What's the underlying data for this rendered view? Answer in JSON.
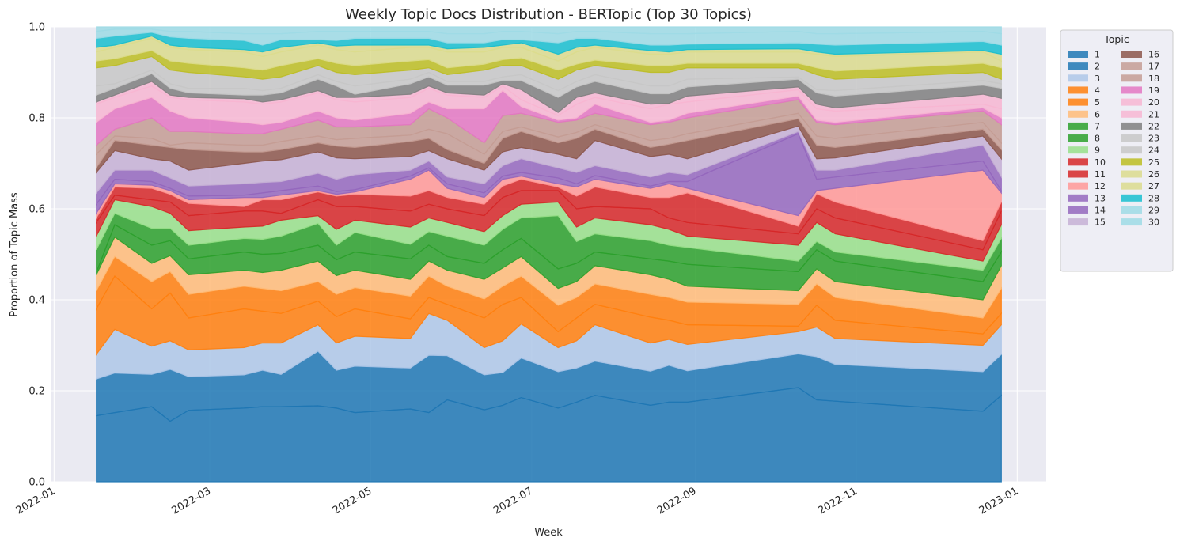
{
  "chart_data": {
    "type": "stacked_area",
    "title": "Weekly Topic Docs Distribution - BERTopic (Top 30 Topics)",
    "x_label": "Week",
    "y_label": "Proportion of Topic Mass",
    "legend_title": "Topic",
    "legend_loc": "outside upper right",
    "grid": true,
    "x": [
      "2022-01-17",
      "2022-01-24",
      "2022-02-07",
      "2022-02-14",
      "2022-02-21",
      "2022-03-14",
      "2022-03-21",
      "2022-03-28",
      "2022-04-11",
      "2022-04-18",
      "2022-04-25",
      "2022-05-16",
      "2022-05-23",
      "2022-05-30",
      "2022-06-13",
      "2022-06-20",
      "2022-06-27",
      "2022-07-11",
      "2022-07-18",
      "2022-07-25",
      "2022-08-15",
      "2022-08-22",
      "2022-08-29",
      "2022-10-10",
      "2022-10-17",
      "2022-10-24",
      "2022-12-19",
      "2022-12-26"
    ],
    "xlim": [
      "2021-12-31",
      "2023-01-12"
    ],
    "xticks": [
      {
        "value": "2022-01-01",
        "label": "2022-01"
      },
      {
        "value": "2022-03-01",
        "label": "2022-03"
      },
      {
        "value": "2022-05-01",
        "label": "2022-05"
      },
      {
        "value": "2022-07-01",
        "label": "2022-07"
      },
      {
        "value": "2022-09-01",
        "label": "2022-09"
      },
      {
        "value": "2022-11-01",
        "label": "2022-11"
      },
      {
        "value": "2023-01-01",
        "label": "2023-01"
      }
    ],
    "ylim": [
      0,
      1
    ],
    "yticks": [
      {
        "value": 0,
        "label": "0.0"
      },
      {
        "value": 0.2,
        "label": "0.2"
      },
      {
        "value": 0.4,
        "label": "0.4"
      },
      {
        "value": 0.6,
        "label": "0.6"
      },
      {
        "value": 0.8,
        "label": "0.8"
      },
      {
        "value": 1,
        "label": "1.0"
      }
    ],
    "series": [
      {
        "name": "1",
        "color": "#1f77b4",
        "values": [
          0.145,
          0.152,
          0.165,
          0.133,
          0.157,
          0.162,
          0.165,
          0.165,
          0.167,
          0.162,
          0.152,
          0.16,
          0.152,
          0.18,
          0.158,
          0.168,
          0.185,
          0.162,
          0.175,
          0.19,
          0.168,
          0.175,
          0.175,
          0.207,
          0.18,
          0.177,
          0.155,
          0.19
        ]
      },
      {
        "name": "2",
        "color": "#1f77b4",
        "values": [
          0.081,
          0.087,
          0.071,
          0.114,
          0.074,
          0.073,
          0.08,
          0.071,
          0.12,
          0.083,
          0.102,
          0.09,
          0.126,
          0.097,
          0.077,
          0.072,
          0.087,
          0.08,
          0.075,
          0.075,
          0.075,
          0.081,
          0.069,
          0.074,
          0.095,
          0.081,
          0.087,
          0.09
        ]
      },
      {
        "name": "3",
        "color": "#aec7e8",
        "values": [
          0.054,
          0.096,
          0.062,
          0.063,
          0.059,
          0.06,
          0.06,
          0.069,
          0.058,
          0.06,
          0.066,
          0.065,
          0.092,
          0.078,
          0.06,
          0.07,
          0.075,
          0.053,
          0.06,
          0.08,
          0.062,
          0.057,
          0.058,
          0.049,
          0.065,
          0.057,
          0.058,
          0.065
        ]
      },
      {
        "name": "4",
        "color": "#ff7f0e",
        "values": [
          0.1,
          0.117,
          0.082,
          0.105,
          0.07,
          0.085,
          0.07,
          0.065,
          0.052,
          0.058,
          0.06,
          0.043,
          0.035,
          0.035,
          0.065,
          0.08,
          0.058,
          0.035,
          0.05,
          0.045,
          0.057,
          0.042,
          0.043,
          0.012,
          0.048,
          0.04,
          0.025,
          0.025
        ]
      },
      {
        "name": "5",
        "color": "#ff7f0e",
        "values": [
          0.04,
          0.043,
          0.06,
          0.047,
          0.052,
          0.05,
          0.05,
          0.05,
          0.043,
          0.049,
          0.047,
          0.05,
          0.047,
          0.04,
          0.042,
          0.04,
          0.047,
          0.058,
          0.045,
          0.045,
          0.05,
          0.05,
          0.05,
          0.048,
          0.047,
          0.05,
          0.035,
          0.055
        ]
      },
      {
        "name": "6",
        "color": "#ffbb78",
        "values": [
          0.035,
          0.043,
          0.04,
          0.035,
          0.043,
          0.035,
          0.035,
          0.045,
          0.045,
          0.041,
          0.038,
          0.037,
          0.033,
          0.035,
          0.043,
          0.04,
          0.043,
          0.037,
          0.035,
          0.04,
          0.043,
          0.04,
          0.035,
          0.03,
          0.033,
          0.035,
          0.04,
          0.05
        ]
      },
      {
        "name": "7",
        "color": "#2ca02c",
        "values": [
          0.005,
          0.027,
          0.04,
          0.033,
          0.035,
          0.04,
          0.04,
          0.037,
          0.035,
          0.035,
          0.04,
          0.045,
          0.035,
          0.03,
          0.035,
          0.04,
          0.04,
          0.043,
          0.04,
          0.03,
          0.035,
          0.04,
          0.048,
          0.042,
          0.042,
          0.045,
          0.04,
          0.03
        ]
      },
      {
        "name": "8",
        "color": "#2ca02c",
        "values": [
          0.05,
          0.025,
          0.037,
          0.027,
          0.03,
          0.03,
          0.033,
          0.038,
          0.048,
          0.032,
          0.043,
          0.032,
          0.03,
          0.045,
          0.04,
          0.045,
          0.045,
          0.117,
          0.048,
          0.04,
          0.04,
          0.035,
          0.037,
          0.023,
          0.018,
          0.02,
          0.025,
          0.03
        ]
      },
      {
        "name": "9",
        "color": "#98df8a",
        "values": [
          0.03,
          0.03,
          0.048,
          0.033,
          0.032,
          0.025,
          0.029,
          0.035,
          0.017,
          0.035,
          0.027,
          0.038,
          0.03,
          0.03,
          0.03,
          0.03,
          0.03,
          0.03,
          0.032,
          0.035,
          0.035,
          0.035,
          0.025,
          0.035,
          0.042,
          0.04,
          0.02,
          0.03
        ]
      },
      {
        "name": "10",
        "color": "#d62728",
        "values": [
          0.03,
          0.01,
          0.015,
          0.025,
          0.033,
          0.035,
          0.033,
          0.015,
          0.035,
          0.05,
          0.03,
          0.035,
          0.03,
          0.03,
          0.035,
          0.04,
          0.03,
          0.025,
          0.04,
          0.025,
          0.035,
          0.025,
          0.03,
          0.025,
          0.03,
          0.035,
          0.025,
          0.03
        ]
      },
      {
        "name": "11",
        "color": "#d62728",
        "values": [
          0.01,
          0.018,
          0.025,
          0.017,
          0.027,
          0.01,
          0.025,
          0.03,
          0.017,
          0.023,
          0.027,
          0.033,
          0.03,
          0.025,
          0.025,
          0.025,
          0.025,
          0.008,
          0.028,
          0.043,
          0.025,
          0.045,
          0.065,
          0.017,
          0.033,
          0.035,
          0.02,
          0.02
        ]
      },
      {
        "name": "12",
        "color": "#ff9896",
        "values": [
          0.01,
          0.007,
          0.007,
          0.008,
          0.008,
          0.02,
          0.005,
          0.01,
          0.003,
          0.004,
          0.005,
          0.037,
          0.045,
          0.02,
          0.015,
          0.015,
          0.007,
          0.007,
          0.02,
          0.017,
          0.02,
          0.03,
          0.01,
          0.023,
          0.007,
          0.03,
          0.155,
          0.02
        ]
      },
      {
        "name": "13",
        "color": "#9467bd",
        "values": [
          0.02,
          0.01,
          0.008,
          0.005,
          0.008,
          0.005,
          0.01,
          0.01,
          0.01,
          0.006,
          0.005,
          0.007,
          0.005,
          0.01,
          0.01,
          0.007,
          0.008,
          0.013,
          0.007,
          0.008,
          0.005,
          0.005,
          0.015,
          0.18,
          0.025,
          0.025,
          0.02,
          0.005
        ]
      },
      {
        "name": "14",
        "color": "#9467bd",
        "values": [
          0.025,
          0.02,
          0.025,
          0.023,
          0.022,
          0.025,
          0.023,
          0.02,
          0.028,
          0.027,
          0.033,
          0.013,
          0.015,
          0.015,
          0.02,
          0.023,
          0.03,
          0.022,
          0.025,
          0.022,
          0.02,
          0.02,
          0.015,
          0.005,
          0.02,
          0.015,
          0.035,
          0.03
        ]
      },
      {
        "name": "15",
        "color": "#c5b0d5",
        "values": [
          0.045,
          0.043,
          0.025,
          0.037,
          0.035,
          0.045,
          0.047,
          0.048,
          0.047,
          0.047,
          0.035,
          0.03,
          0.023,
          0.04,
          0.03,
          0.03,
          0.025,
          0.03,
          0.03,
          0.055,
          0.045,
          0.04,
          0.035,
          0.012,
          0.025,
          0.027,
          0.02,
          0.04
        ]
      },
      {
        "name": "16",
        "color": "#8c564b",
        "values": [
          0.01,
          0.022,
          0.03,
          0.03,
          0.045,
          0.025,
          0.02,
          0.022,
          0.02,
          0.026,
          0.025,
          0.033,
          0.027,
          0.02,
          0.015,
          0.03,
          0.035,
          0.025,
          0.045,
          0.025,
          0.02,
          0.022,
          0.04,
          0.016,
          0.03,
          0.023,
          0.015,
          0.02
        ]
      },
      {
        "name": "17",
        "color": "#c49c94",
        "values": [
          0.03,
          0.01,
          0.015,
          0.005,
          0.015,
          0.015,
          0.015,
          0.018,
          0.015,
          0.014,
          0.02,
          0.014,
          0.02,
          0.035,
          0.02,
          0.015,
          0.01,
          0.013,
          0.013,
          0.01,
          0.015,
          0.013,
          0.015,
          0.012,
          0.02,
          0.02,
          0.015,
          0.015
        ]
      },
      {
        "name": "18",
        "color": "#c49c94",
        "values": [
          0.02,
          0.015,
          0.045,
          0.03,
          0.025,
          0.025,
          0.025,
          0.027,
          0.035,
          0.028,
          0.025,
          0.023,
          0.045,
          0.035,
          0.025,
          0.035,
          0.03,
          0.032,
          0.027,
          0.025,
          0.035,
          0.035,
          0.035,
          0.03,
          0.03,
          0.03,
          0.025,
          0.04
        ]
      },
      {
        "name": "19",
        "color": "#e377c2",
        "values": [
          0.05,
          0.045,
          0.045,
          0.045,
          0.03,
          0.025,
          0.02,
          0.015,
          0.02,
          0.02,
          0.015,
          0.025,
          0.015,
          0.02,
          0.075,
          0.055,
          0.015,
          0.005,
          0.005,
          0.02,
          0.005,
          0.005,
          0.01,
          0.008,
          0.005,
          0.005,
          0.007,
          0.015
        ]
      },
      {
        "name": "20",
        "color": "#f7b6d2",
        "values": [
          0.04,
          0.025,
          0.025,
          0.03,
          0.04,
          0.045,
          0.045,
          0.045,
          0.04,
          0.04,
          0.04,
          0.035,
          0.03,
          0.03,
          0.025,
          0.01,
          0.015,
          0.01,
          0.03,
          0.015,
          0.03,
          0.035,
          0.025,
          0.014,
          0.025,
          0.025,
          0.008,
          0.02
        ]
      },
      {
        "name": "21",
        "color": "#f7b6d2",
        "values": [
          0.005,
          0.005,
          0.01,
          0.005,
          0.005,
          0.007,
          0.005,
          0.005,
          0.005,
          0.005,
          0.01,
          0.007,
          0.005,
          0.005,
          0.005,
          0.005,
          0.022,
          0.007,
          0.015,
          0.01,
          0.01,
          0.002,
          0.013,
          0.006,
          0.01,
          0.007,
          0.022,
          0.023
        ]
      },
      {
        "name": "22",
        "color": "#7f7f7f",
        "values": [
          0.015,
          0.015,
          0.017,
          0.015,
          0.01,
          0.008,
          0.015,
          0.015,
          0.025,
          0.025,
          0.007,
          0.023,
          0.02,
          0.017,
          0.022,
          0.007,
          0.02,
          0.033,
          0.023,
          0.025,
          0.023,
          0.021,
          0.02,
          0.017,
          0.025,
          0.026,
          0.02,
          0.022
        ]
      },
      {
        "name": "23",
        "color": "#c7c7c7",
        "values": [
          0.02,
          0.01,
          0.008,
          0.01,
          0.01,
          0.015,
          0.01,
          0.01,
          0.01,
          0.01,
          0.018,
          0.01,
          0.01,
          0.008,
          0.008,
          0.008,
          0.013,
          0.015,
          0.012,
          0.015,
          0.017,
          0.017,
          0.017,
          0.005,
          0.007,
          0.012,
          0.01,
          0.01
        ]
      },
      {
        "name": "24",
        "color": "#c7c7c7",
        "values": [
          0.04,
          0.04,
          0.03,
          0.03,
          0.035,
          0.025,
          0.025,
          0.025,
          0.02,
          0.02,
          0.025,
          0.02,
          0.01,
          0.015,
          0.025,
          0.025,
          0.02,
          0.025,
          0.025,
          0.02,
          0.03,
          0.03,
          0.025,
          0.02,
          0.033,
          0.025,
          0.018,
          0.01
        ]
      },
      {
        "name": "25",
        "color": "#bcbd22",
        "values": [
          0.015,
          0.015,
          0.013,
          0.02,
          0.02,
          0.02,
          0.02,
          0.025,
          0.015,
          0.02,
          0.02,
          0.02,
          0.018,
          0.015,
          0.013,
          0.013,
          0.017,
          0.02,
          0.013,
          0.012,
          0.015,
          0.015,
          0.01,
          0.01,
          0.015,
          0.018,
          0.02,
          0.025
        ]
      },
      {
        "name": "26",
        "color": "#dbdb8d",
        "values": [
          0.02,
          0.025,
          0.027,
          0.03,
          0.03,
          0.035,
          0.03,
          0.03,
          0.03,
          0.03,
          0.03,
          0.03,
          0.027,
          0.035,
          0.027,
          0.027,
          0.023,
          0.02,
          0.027,
          0.028,
          0.025,
          0.025,
          0.025,
          0.025,
          0.03,
          0.032,
          0.025,
          0.015
        ]
      },
      {
        "name": "27",
        "color": "#dbdb8d",
        "values": [
          0.01,
          0.005,
          0.005,
          0.005,
          0.005,
          0.005,
          0.01,
          0.01,
          0.005,
          0.008,
          0.015,
          0.005,
          0.005,
          0.007,
          0.01,
          0.005,
          0.01,
          0.015,
          0.01,
          0.005,
          0.008,
          0.005,
          0.005,
          0.007,
          0.005,
          0.005,
          0.003,
          0.015
        ]
      },
      {
        "name": "28",
        "color": "#17becf",
        "values": [
          0.02,
          0.02,
          0.008,
          0.018,
          0.02,
          0.02,
          0.015,
          0.017,
          0.007,
          0.012,
          0.015,
          0.015,
          0.015,
          0.013,
          0.01,
          0.012,
          0.007,
          0.025,
          0.02,
          0.015,
          0.012,
          0.015,
          0.012,
          0.013,
          0.017,
          0.02,
          0.02,
          0.02
        ]
      },
      {
        "name": "29",
        "color": "#9edae5",
        "values": [
          0.015,
          0.015,
          0.007,
          0.012,
          0.015,
          0.015,
          0.025,
          0.013,
          0.018,
          0.02,
          0.015,
          0.015,
          0.015,
          0.02,
          0.02,
          0.018,
          0.018,
          0.02,
          0.015,
          0.015,
          0.025,
          0.025,
          0.023,
          0.025,
          0.023,
          0.025,
          0.022,
          0.025
        ]
      },
      {
        "name": "30",
        "color": "#9edae5",
        "values": [
          0.01,
          0.005,
          0.005,
          0.01,
          0.01,
          0.015,
          0.015,
          0.015,
          0.01,
          0.01,
          0.01,
          0.01,
          0.01,
          0.015,
          0.015,
          0.01,
          0.01,
          0.015,
          0.01,
          0.01,
          0.015,
          0.015,
          0.015,
          0.01,
          0.015,
          0.015,
          0.01,
          0.015
        ]
      }
    ]
  }
}
